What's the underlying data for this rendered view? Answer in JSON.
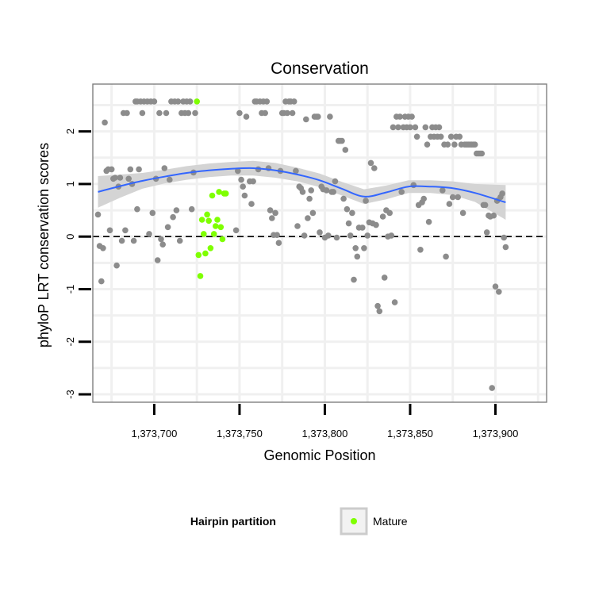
{
  "chart_data": {
    "type": "scatter",
    "title": "Conservation",
    "xlabel": "Genomic Position",
    "ylabel": "phyloP LRT conservation scores",
    "xlim": [
      1373664,
      1373930
    ],
    "ylim": [
      -3.15,
      2.9
    ],
    "x_ticks": [
      1373700,
      1373750,
      1373800,
      1373850,
      1373900
    ],
    "x_tick_labels": [
      "1,373,700",
      "1,373,750",
      "1,373,800",
      "1,373,850",
      "1,373,900"
    ],
    "y_ticks": [
      -3,
      -2,
      -1,
      0,
      1,
      2
    ],
    "y_tick_labels": [
      "-3",
      "-2",
      "-1",
      "0",
      "1",
      "2"
    ],
    "reference_line": {
      "y": 0,
      "style": "dashed"
    },
    "legend": {
      "title": "Hairpin partition",
      "position": "bottom",
      "entries": [
        {
          "label": "Mature",
          "color": "#7fff00"
        }
      ]
    },
    "colors": {
      "other": "#8c8c8c",
      "mature": "#7fff00",
      "smooth": "#3366ff",
      "band": "#d4d4d4",
      "grid": "#f0f0f0"
    },
    "series": [
      {
        "name": "Other",
        "points": [
          [
            1373667,
            0.42
          ],
          [
            1373668,
            -0.18
          ],
          [
            1373669,
            -0.85
          ],
          [
            1373670,
            -0.22
          ],
          [
            1373671,
            2.17
          ],
          [
            1373672,
            1.25
          ],
          [
            1373673,
            1.28
          ],
          [
            1373674,
            0.12
          ],
          [
            1373675,
            1.28
          ],
          [
            1373676,
            1.1
          ],
          [
            1373677,
            1.12
          ],
          [
            1373678,
            -0.55
          ],
          [
            1373679,
            0.95
          ],
          [
            1373680,
            1.12
          ],
          [
            1373681,
            -0.08
          ],
          [
            1373682,
            2.35
          ],
          [
            1373683,
            0.12
          ],
          [
            1373684,
            2.35
          ],
          [
            1373685,
            1.1
          ],
          [
            1373686,
            1.28
          ],
          [
            1373687,
            1.0
          ],
          [
            1373688,
            -0.08
          ],
          [
            1373689,
            2.57
          ],
          [
            1373690,
            0.52
          ],
          [
            1373690,
            2.57
          ],
          [
            1373691,
            1.28
          ],
          [
            1373692,
            2.57
          ],
          [
            1373693,
            2.35
          ],
          [
            1373694,
            2.57
          ],
          [
            1373696,
            2.57
          ],
          [
            1373697,
            0.05
          ],
          [
            1373698,
            2.57
          ],
          [
            1373699,
            0.45
          ],
          [
            1373700,
            2.57
          ],
          [
            1373701,
            1.1
          ],
          [
            1373702,
            -0.45
          ],
          [
            1373703,
            2.35
          ],
          [
            1373704,
            -0.05
          ],
          [
            1373705,
            -0.15
          ],
          [
            1373706,
            1.3
          ],
          [
            1373707,
            2.35
          ],
          [
            1373708,
            0.18
          ],
          [
            1373709,
            1.08
          ],
          [
            1373710,
            2.57
          ],
          [
            1373711,
            0.37
          ],
          [
            1373712,
            2.57
          ],
          [
            1373713,
            0.5
          ],
          [
            1373714,
            2.57
          ],
          [
            1373715,
            -0.08
          ],
          [
            1373716,
            2.35
          ],
          [
            1373717,
            2.57
          ],
          [
            1373718,
            2.35
          ],
          [
            1373719,
            2.57
          ],
          [
            1373720,
            2.35
          ],
          [
            1373721,
            2.57
          ],
          [
            1373722,
            0.52
          ],
          [
            1373723,
            1.22
          ],
          [
            1373724,
            2.35
          ],
          [
            1373748,
            0.12
          ],
          [
            1373749,
            1.25
          ],
          [
            1373750,
            2.35
          ],
          [
            1373751,
            1.08
          ],
          [
            1373752,
            0.95
          ],
          [
            1373753,
            0.78
          ],
          [
            1373754,
            2.28
          ],
          [
            1373756,
            1.05
          ],
          [
            1373757,
            0.62
          ],
          [
            1373758,
            1.05
          ],
          [
            1373759,
            2.57
          ],
          [
            1373760,
            2.57
          ],
          [
            1373761,
            1.28
          ],
          [
            1373762,
            2.57
          ],
          [
            1373763,
            2.35
          ],
          [
            1373764,
            2.57
          ],
          [
            1373765,
            2.35
          ],
          [
            1373766,
            2.57
          ],
          [
            1373767,
            1.3
          ],
          [
            1373768,
            0.5
          ],
          [
            1373769,
            0.35
          ],
          [
            1373770,
            0.03
          ],
          [
            1373771,
            0.45
          ],
          [
            1373772,
            0.03
          ],
          [
            1373773,
            -0.12
          ],
          [
            1373774,
            1.25
          ],
          [
            1373775,
            2.35
          ],
          [
            1373776,
            2.35
          ],
          [
            1373777,
            2.57
          ],
          [
            1373778,
            2.35
          ],
          [
            1373779,
            2.57
          ],
          [
            1373780,
            2.57
          ],
          [
            1373781,
            2.35
          ],
          [
            1373782,
            2.57
          ],
          [
            1373783,
            1.25
          ],
          [
            1373784,
            0.2
          ],
          [
            1373785,
            0.95
          ],
          [
            1373786,
            0.92
          ],
          [
            1373787,
            0.85
          ],
          [
            1373788,
            0.02
          ],
          [
            1373789,
            2.23
          ],
          [
            1373790,
            0.35
          ],
          [
            1373791,
            0.72
          ],
          [
            1373792,
            0.88
          ],
          [
            1373793,
            0.45
          ],
          [
            1373794,
            2.28
          ],
          [
            1373795,
            2.28
          ],
          [
            1373796,
            2.28
          ],
          [
            1373797,
            0.08
          ],
          [
            1373798,
            0.95
          ],
          [
            1373799,
            0.9
          ],
          [
            1373800,
            -0.02
          ],
          [
            1373801,
            0.88
          ],
          [
            1373802,
            0.02
          ],
          [
            1373803,
            2.28
          ],
          [
            1373804,
            0.85
          ],
          [
            1373805,
            0.85
          ],
          [
            1373806,
            1.05
          ],
          [
            1373807,
            -0.02
          ],
          [
            1373808,
            1.82
          ],
          [
            1373809,
            1.82
          ],
          [
            1373810,
            1.82
          ],
          [
            1373811,
            0.72
          ],
          [
            1373812,
            1.65
          ],
          [
            1373813,
            0.52
          ],
          [
            1373814,
            0.25
          ],
          [
            1373815,
            0.02
          ],
          [
            1373816,
            0.45
          ],
          [
            1373817,
            -0.82
          ],
          [
            1373818,
            -0.22
          ],
          [
            1373819,
            -0.38
          ],
          [
            1373820,
            0.17
          ],
          [
            1373822,
            0.17
          ],
          [
            1373823,
            -0.22
          ],
          [
            1373824,
            0.68
          ],
          [
            1373825,
            0.02
          ],
          [
            1373826,
            0.27
          ],
          [
            1373827,
            1.4
          ],
          [
            1373828,
            0.25
          ],
          [
            1373829,
            1.3
          ],
          [
            1373830,
            0.22
          ],
          [
            1373831,
            -1.32
          ],
          [
            1373832,
            -1.42
          ],
          [
            1373834,
            0.38
          ],
          [
            1373835,
            -0.78
          ],
          [
            1373836,
            0.5
          ],
          [
            1373837,
            0.0
          ],
          [
            1373838,
            0.45
          ],
          [
            1373839,
            0.02
          ],
          [
            1373840,
            2.08
          ],
          [
            1373841,
            -1.25
          ],
          [
            1373842,
            2.28
          ],
          [
            1373843,
            2.08
          ],
          [
            1373844,
            2.28
          ],
          [
            1373845,
            0.85
          ],
          [
            1373846,
            2.08
          ],
          [
            1373847,
            2.28
          ],
          [
            1373848,
            2.08
          ],
          [
            1373849,
            2.28
          ],
          [
            1373850,
            2.08
          ],
          [
            1373851,
            2.28
          ],
          [
            1373852,
            0.98
          ],
          [
            1373853,
            2.08
          ],
          [
            1373854,
            1.9
          ],
          [
            1373855,
            0.6
          ],
          [
            1373856,
            -0.25
          ],
          [
            1373857,
            0.65
          ],
          [
            1373858,
            0.72
          ],
          [
            1373859,
            2.08
          ],
          [
            1373860,
            1.75
          ],
          [
            1373861,
            0.28
          ],
          [
            1373862,
            1.9
          ],
          [
            1373863,
            2.08
          ],
          [
            1373864,
            1.9
          ],
          [
            1373865,
            2.08
          ],
          [
            1373866,
            1.9
          ],
          [
            1373867,
            2.08
          ],
          [
            1373868,
            1.9
          ],
          [
            1373869,
            0.88
          ],
          [
            1373870,
            1.75
          ],
          [
            1373871,
            -0.38
          ],
          [
            1373872,
            1.75
          ],
          [
            1373873,
            0.62
          ],
          [
            1373874,
            1.9
          ],
          [
            1373875,
            0.75
          ],
          [
            1373876,
            1.75
          ],
          [
            1373877,
            1.9
          ],
          [
            1373878,
            0.75
          ],
          [
            1373879,
            1.9
          ],
          [
            1373880,
            1.75
          ],
          [
            1373881,
            0.45
          ],
          [
            1373882,
            1.75
          ],
          [
            1373883,
            1.75
          ],
          [
            1373884,
            1.75
          ],
          [
            1373885,
            1.75
          ],
          [
            1373886,
            1.75
          ],
          [
            1373887,
            1.75
          ],
          [
            1373888,
            1.75
          ],
          [
            1373889,
            1.58
          ],
          [
            1373890,
            1.58
          ],
          [
            1373891,
            1.58
          ],
          [
            1373892,
            1.58
          ],
          [
            1373893,
            0.6
          ],
          [
            1373894,
            0.6
          ],
          [
            1373895,
            0.08
          ],
          [
            1373896,
            0.4
          ],
          [
            1373897,
            0.38
          ],
          [
            1373898,
            -2.88
          ],
          [
            1373899,
            0.4
          ],
          [
            1373900,
            -0.95
          ],
          [
            1373901,
            0.68
          ],
          [
            1373902,
            -1.05
          ],
          [
            1373903,
            0.75
          ],
          [
            1373904,
            0.82
          ],
          [
            1373905,
            -0.02
          ],
          [
            1373906,
            -0.2
          ]
        ]
      },
      {
        "name": "Mature",
        "points": [
          [
            1373725,
            2.57
          ],
          [
            1373726,
            -0.35
          ],
          [
            1373727,
            -0.75
          ],
          [
            1373728,
            0.32
          ],
          [
            1373729,
            0.05
          ],
          [
            1373730,
            -0.32
          ],
          [
            1373731,
            0.42
          ],
          [
            1373732,
            0.3
          ],
          [
            1373733,
            -0.22
          ],
          [
            1373734,
            0.78
          ],
          [
            1373735,
            0.05
          ],
          [
            1373736,
            0.2
          ],
          [
            1373737,
            0.32
          ],
          [
            1373738,
            0.85
          ],
          [
            1373739,
            0.18
          ],
          [
            1373740,
            -0.05
          ],
          [
            1373741,
            0.82
          ],
          [
            1373742,
            0.82
          ]
        ]
      }
    ],
    "smooth": {
      "x": [
        1373667,
        1373680,
        1373693,
        1373706,
        1373719,
        1373732,
        1373745,
        1373758,
        1373771,
        1373784,
        1373797,
        1373810,
        1373823,
        1373836,
        1373849,
        1373862,
        1373875,
        1373888,
        1373906
      ],
      "y": [
        0.85,
        0.96,
        1.06,
        1.14,
        1.21,
        1.26,
        1.29,
        1.3,
        1.26,
        1.18,
        1.07,
        0.91,
        0.76,
        0.84,
        0.95,
        0.95,
        0.92,
        0.83,
        0.65
      ],
      "se": [
        0.3,
        0.22,
        0.15,
        0.13,
        0.13,
        0.13,
        0.13,
        0.14,
        0.14,
        0.13,
        0.13,
        0.13,
        0.14,
        0.13,
        0.12,
        0.12,
        0.13,
        0.17,
        0.33
      ]
    }
  }
}
